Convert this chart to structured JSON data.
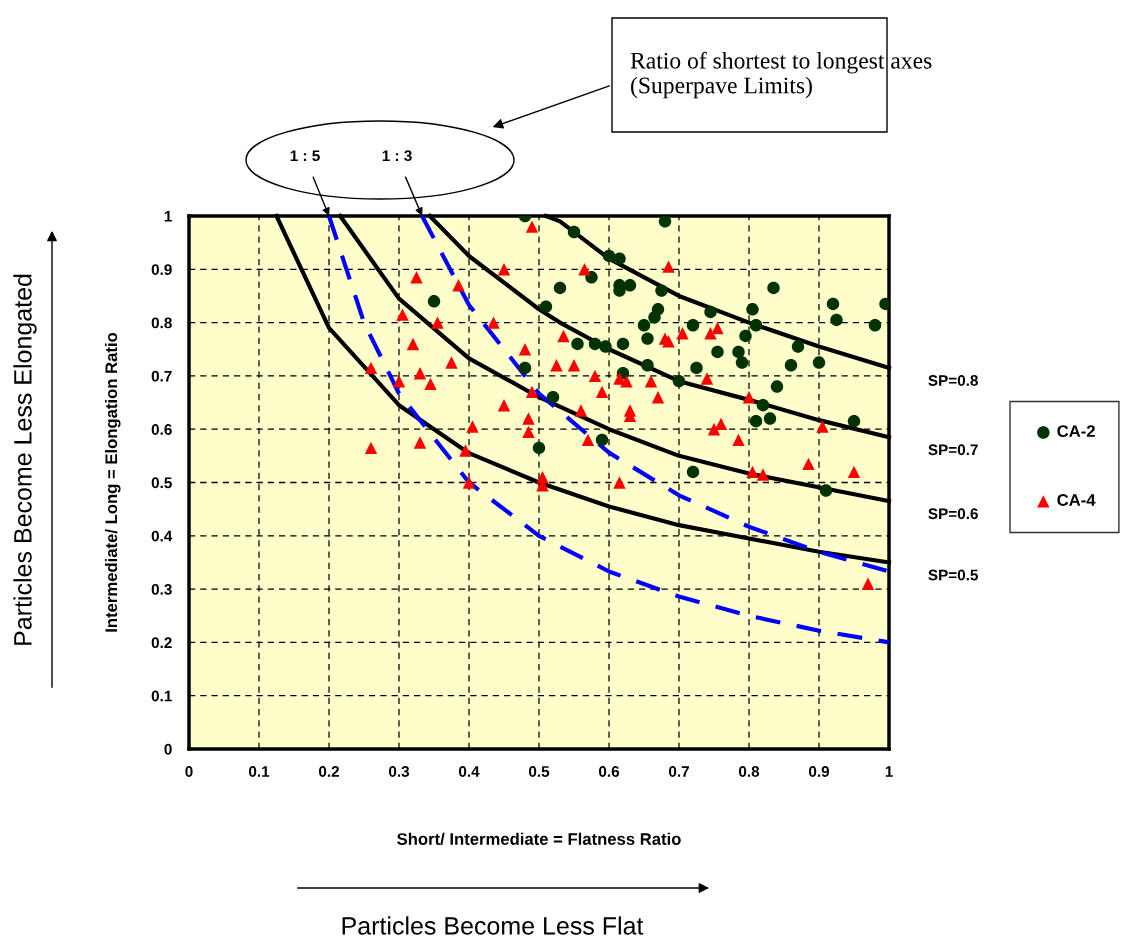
{
  "chart_data": {
    "type": "scatter",
    "xlabel": "Short/ Intermediate = Flatness Ratio",
    "ylabel": "Intermediate/ Long = Elongation Ratio",
    "xlim": [
      0,
      1
    ],
    "ylim": [
      0,
      1
    ],
    "xticks": [
      0,
      0.1,
      0.2,
      0.3,
      0.4,
      0.5,
      0.6,
      0.7,
      0.8,
      0.9,
      1
    ],
    "yticks": [
      0,
      0.1,
      0.2,
      0.3,
      0.4,
      0.5,
      0.6,
      0.7,
      0.8,
      0.9,
      1
    ],
    "grid": true,
    "legend": "right",
    "annotations": [
      "Ratio of shortest to longest axes (Superpave Limits)",
      "Particles Become Less Elongated",
      "Particles Become Less Flat"
    ],
    "series": [
      {
        "name": "SP=0.8",
        "type": "line",
        "color": "#000000",
        "line_style": "solid",
        "marker": "none",
        "x": [
          0.51,
          0.53,
          0.6,
          0.7,
          0.8,
          0.9,
          1.0
        ],
        "values": [
          1.0,
          0.99,
          0.92,
          0.85,
          0.8,
          0.755,
          0.715
        ]
      },
      {
        "name": "SP=0.7",
        "type": "line",
        "color": "#000000",
        "line_style": "solid",
        "marker": "none",
        "x": [
          0.344,
          0.4,
          0.5,
          0.53,
          0.6,
          0.7,
          0.8,
          0.9,
          1.0
        ],
        "values": [
          1.0,
          0.925,
          0.825,
          0.8,
          0.75,
          0.69,
          0.655,
          0.617,
          0.585
        ]
      },
      {
        "name": "SP=0.6",
        "type": "line",
        "color": "#000000",
        "line_style": "solid",
        "marker": "none",
        "x": [
          0.216,
          0.3,
          0.4,
          0.5,
          0.6,
          0.7,
          0.8,
          1.0
        ],
        "values": [
          1.0,
          0.845,
          0.733,
          0.66,
          0.6,
          0.55,
          0.517,
          0.465
        ]
      },
      {
        "name": "SP=0.5",
        "type": "line",
        "color": "#000000",
        "line_style": "solid",
        "marker": "none",
        "x": [
          0.125,
          0.2,
          0.3,
          0.4,
          0.5,
          0.6,
          0.7,
          0.8,
          0.9,
          1.0
        ],
        "values": [
          1.0,
          0.79,
          0.645,
          0.555,
          0.5,
          0.455,
          0.42,
          0.395,
          0.37,
          0.35
        ]
      },
      {
        "name": "1 : 5",
        "type": "line",
        "color": "#0000ff",
        "line_style": "dashed",
        "marker": "none",
        "x": [
          0.2,
          0.25,
          0.3,
          0.4,
          0.5,
          0.6,
          0.7,
          0.8,
          0.9,
          1.0
        ],
        "values": [
          1.0,
          0.8,
          0.667,
          0.5,
          0.4,
          0.333,
          0.286,
          0.25,
          0.222,
          0.2
        ]
      },
      {
        "name": "1 : 3",
        "type": "line",
        "color": "#0000ff",
        "line_style": "dashed",
        "marker": "none",
        "x": [
          0.333,
          0.4,
          0.5,
          0.6,
          0.7,
          0.8,
          0.9,
          1.0
        ],
        "values": [
          1.0,
          0.833,
          0.667,
          0.556,
          0.476,
          0.417,
          0.37,
          0.333
        ]
      },
      {
        "name": "CA-2",
        "color": "#003300",
        "marker": "circle",
        "x": [
          0.35,
          0.48,
          0.48,
          0.51,
          0.52,
          0.5,
          0.53,
          0.55,
          0.555,
          0.575,
          0.58,
          0.59,
          0.595,
          0.6,
          0.615,
          0.615,
          0.615,
          0.62,
          0.62,
          0.63,
          0.65,
          0.655,
          0.655,
          0.665,
          0.67,
          0.675,
          0.68,
          0.7,
          0.72,
          0.72,
          0.725,
          0.745,
          0.755,
          0.785,
          0.79,
          0.795,
          0.805,
          0.81,
          0.81,
          0.82,
          0.83,
          0.835,
          0.84,
          0.86,
          0.87,
          0.9,
          0.91,
          0.92,
          0.925,
          0.95,
          0.98,
          0.995
        ],
        "values": [
          0.84,
          1.0,
          0.715,
          0.83,
          0.66,
          0.565,
          0.865,
          0.97,
          0.76,
          0.885,
          0.76,
          0.58,
          0.755,
          0.925,
          0.92,
          0.87,
          0.86,
          0.76,
          0.705,
          0.87,
          0.795,
          0.77,
          0.72,
          0.81,
          0.825,
          0.86,
          0.99,
          0.69,
          0.795,
          0.52,
          0.715,
          0.82,
          0.745,
          0.745,
          0.725,
          0.775,
          0.825,
          0.615,
          0.795,
          0.645,
          0.62,
          0.865,
          0.68,
          0.72,
          0.755,
          0.725,
          0.485,
          0.835,
          0.805,
          0.615,
          0.795,
          0.835
        ]
      },
      {
        "name": "CA-4",
        "color": "#ff0000",
        "marker": "triangle",
        "x": [
          0.26,
          0.26,
          0.3,
          0.305,
          0.32,
          0.325,
          0.33,
          0.33,
          0.345,
          0.355,
          0.375,
          0.385,
          0.395,
          0.4,
          0.405,
          0.435,
          0.45,
          0.45,
          0.48,
          0.485,
          0.485,
          0.49,
          0.49,
          0.505,
          0.505,
          0.525,
          0.535,
          0.55,
          0.56,
          0.565,
          0.57,
          0.58,
          0.59,
          0.615,
          0.615,
          0.625,
          0.63,
          0.63,
          0.66,
          0.67,
          0.68,
          0.685,
          0.685,
          0.705,
          0.74,
          0.745,
          0.75,
          0.755,
          0.76,
          0.785,
          0.8,
          0.805,
          0.82,
          0.885,
          0.905,
          0.95,
          0.97
        ],
        "values": [
          0.715,
          0.565,
          0.69,
          0.815,
          0.76,
          0.885,
          0.705,
          0.575,
          0.685,
          0.8,
          0.725,
          0.87,
          0.56,
          0.5,
          0.605,
          0.8,
          0.9,
          0.645,
          0.75,
          0.62,
          0.595,
          0.98,
          0.67,
          0.51,
          0.495,
          0.72,
          0.775,
          0.72,
          0.635,
          0.9,
          0.58,
          0.7,
          0.67,
          0.5,
          0.695,
          0.69,
          0.635,
          0.625,
          0.69,
          0.66,
          0.77,
          0.765,
          0.905,
          0.78,
          0.695,
          0.78,
          0.6,
          0.79,
          0.61,
          0.58,
          0.66,
          0.52,
          0.515,
          0.535,
          0.605,
          0.52,
          0.31
        ]
      }
    ]
  }
}
